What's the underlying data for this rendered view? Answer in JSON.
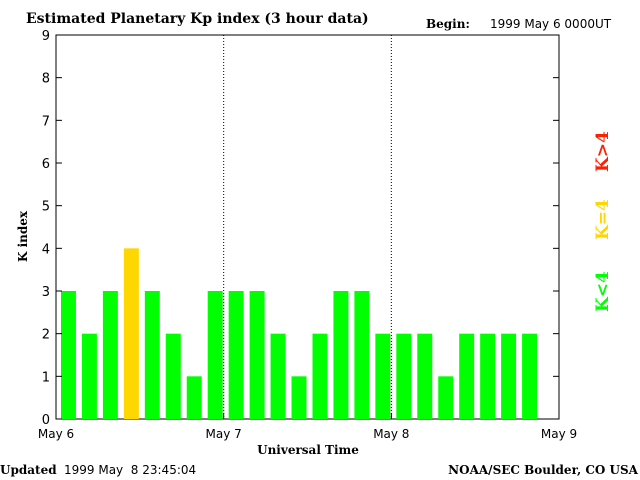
{
  "header": {
    "title": "Estimated Planetary Kp index (3 hour data)",
    "begin_label": "Begin:",
    "begin_value": "1999 May 6 0000UT"
  },
  "footer": {
    "updated_label": "Updated",
    "updated_value": "1999 May  8 23:45:04",
    "credit": "NOAA/SEC Boulder, CO USA"
  },
  "legend": {
    "above": "K>4",
    "equal": "K=4",
    "below": "K<4"
  },
  "colors": {
    "below": "#00ff00",
    "equal": "#ffd700",
    "above": "#ff2000",
    "axis": "#000000"
  },
  "chart_data": {
    "type": "bar",
    "title": "Estimated Planetary Kp index (3 hour data)",
    "xlabel": "Universal Time",
    "ylabel": "K index",
    "ylim": [
      0,
      9
    ],
    "yticks": [
      "0",
      "1",
      "2",
      "3",
      "4",
      "5",
      "6",
      "7",
      "8",
      "9"
    ],
    "xlim_days": [
      0,
      3
    ],
    "xticks": [
      "May 6",
      "May 7",
      "May 8",
      "May 9"
    ],
    "day_separators": [
      1,
      2
    ],
    "bars_per_day": 8,
    "values": [
      3,
      2,
      3,
      4,
      3,
      2,
      1,
      3,
      3,
      3,
      2,
      1,
      2,
      3,
      3,
      2,
      2,
      2,
      1,
      2,
      2,
      2,
      2
    ]
  }
}
